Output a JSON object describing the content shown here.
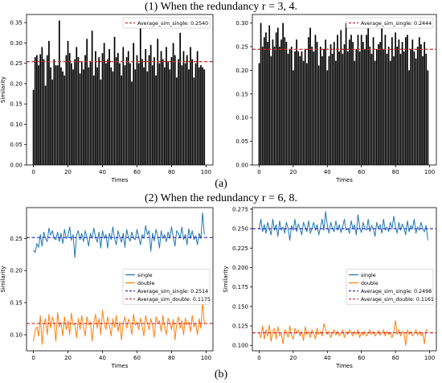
{
  "captions": {
    "top": "(1) When the redundancy r = 3, 4.",
    "panel_a": "(a)",
    "middle": "(2) When the redundancy r = 6, 8.",
    "panel_b": "(b)"
  },
  "colors": {
    "bar": "#000000",
    "single": "#1f77b4",
    "double": "#ff7f0e",
    "avg_single_bar": "#d62728",
    "avg_single_line": "#2222cc",
    "avg_double": "#d62728"
  },
  "chart_data": [
    {
      "type": "bar",
      "xlabel": "Times",
      "ylabel": "Similarity",
      "xlim": [
        -4,
        104
      ],
      "ylim": [
        0,
        0.37
      ],
      "xticks": [
        0,
        20,
        40,
        60,
        80,
        100
      ],
      "yticks": [
        0.0,
        0.05,
        0.1,
        0.15,
        0.2,
        0.25,
        0.3,
        0.35
      ],
      "legend_position": "top-right",
      "average": {
        "label": "Average_sim_single: 0.2540",
        "value": 0.254
      },
      "values": [
        0.185,
        0.265,
        0.27,
        0.245,
        0.272,
        0.29,
        0.26,
        0.195,
        0.27,
        0.305,
        0.24,
        0.21,
        0.26,
        0.245,
        0.245,
        0.355,
        0.24,
        0.23,
        0.22,
        0.27,
        0.305,
        0.275,
        0.25,
        0.235,
        0.26,
        0.29,
        0.265,
        0.225,
        0.255,
        0.235,
        0.27,
        0.31,
        0.24,
        0.255,
        0.33,
        0.22,
        0.28,
        0.24,
        0.265,
        0.21,
        0.275,
        0.3,
        0.25,
        0.26,
        0.285,
        0.24,
        0.23,
        0.315,
        0.265,
        0.275,
        0.25,
        0.22,
        0.29,
        0.245,
        0.265,
        0.28,
        0.25,
        0.205,
        0.3,
        0.235,
        0.27,
        0.25,
        0.345,
        0.26,
        0.24,
        0.285,
        0.23,
        0.27,
        0.295,
        0.245,
        0.265,
        0.22,
        0.31,
        0.25,
        0.28,
        0.26,
        0.24,
        0.29,
        0.255,
        0.235,
        0.265,
        0.3,
        0.27,
        0.215,
        0.26,
        0.325,
        0.245,
        0.28,
        0.25,
        0.27,
        0.235,
        0.29,
        0.26,
        0.215,
        0.25,
        0.28,
        0.24,
        0.245,
        0.24,
        0.235
      ]
    },
    {
      "type": "bar",
      "xlabel": "Times",
      "ylabel": "",
      "xlim": [
        -4,
        104
      ],
      "ylim": [
        0,
        0.318
      ],
      "xticks": [
        0,
        20,
        40,
        60,
        80,
        100
      ],
      "yticks": [
        0.0,
        0.05,
        0.1,
        0.15,
        0.2,
        0.25,
        0.3
      ],
      "legend_position": "top-right",
      "average": {
        "label": "Average_sim_single: 0.2444",
        "value": 0.2444
      },
      "values": [
        0.215,
        0.3,
        0.25,
        0.27,
        0.28,
        0.26,
        0.295,
        0.23,
        0.265,
        0.25,
        0.28,
        0.29,
        0.25,
        0.265,
        0.3,
        0.27,
        0.26,
        0.235,
        0.245,
        0.25,
        0.2,
        0.24,
        0.265,
        0.24,
        0.23,
        0.24,
        0.22,
        0.245,
        0.215,
        0.27,
        0.29,
        0.25,
        0.24,
        0.275,
        0.26,
        0.21,
        0.25,
        0.23,
        0.245,
        0.265,
        0.2,
        0.23,
        0.255,
        0.235,
        0.26,
        0.22,
        0.275,
        0.24,
        0.285,
        0.235,
        0.255,
        0.3,
        0.24,
        0.265,
        0.275,
        0.26,
        0.22,
        0.245,
        0.275,
        0.24,
        0.275,
        0.26,
        0.245,
        0.275,
        0.29,
        0.25,
        0.235,
        0.27,
        0.22,
        0.245,
        0.255,
        0.26,
        0.29,
        0.245,
        0.275,
        0.235,
        0.25,
        0.22,
        0.27,
        0.23,
        0.28,
        0.25,
        0.265,
        0.235,
        0.26,
        0.24,
        0.27,
        0.275,
        0.2,
        0.245,
        0.265,
        0.24,
        0.225,
        0.25,
        0.27,
        0.255,
        0.23,
        0.26,
        0.235,
        0.2
      ]
    },
    {
      "type": "line",
      "xlabel": "Times",
      "ylabel": "Similarity",
      "xlim": [
        -4,
        104
      ],
      "ylim": [
        0.075,
        0.298
      ],
      "xticks": [
        0,
        20,
        40,
        60,
        80,
        100
      ],
      "yticks": [
        0.1,
        0.15,
        0.2,
        0.25
      ],
      "legend_position": "center-right",
      "series": [
        {
          "name": "single",
          "values": [
            0.232,
            0.228,
            0.242,
            0.236,
            0.256,
            0.238,
            0.26,
            0.25,
            0.245,
            0.266,
            0.255,
            0.262,
            0.25,
            0.248,
            0.26,
            0.245,
            0.258,
            0.242,
            0.264,
            0.25,
            0.254,
            0.268,
            0.247,
            0.256,
            0.22,
            0.255,
            0.262,
            0.248,
            0.258,
            0.245,
            0.262,
            0.252,
            0.238,
            0.258,
            0.25,
            0.266,
            0.252,
            0.244,
            0.26,
            0.235,
            0.262,
            0.25,
            0.256,
            0.235,
            0.258,
            0.248,
            0.268,
            0.25,
            0.24,
            0.262,
            0.252,
            0.244,
            0.258,
            0.236,
            0.264,
            0.252,
            0.246,
            0.26,
            0.25,
            0.248,
            0.264,
            0.252,
            0.24,
            0.256,
            0.25,
            0.27,
            0.256,
            0.262,
            0.23,
            0.258,
            0.246,
            0.264,
            0.254,
            0.235,
            0.262,
            0.25,
            0.256,
            0.245,
            0.26,
            0.25,
            0.268,
            0.252,
            0.238,
            0.262,
            0.258,
            0.25,
            0.268,
            0.248,
            0.256,
            0.24,
            0.265,
            0.25,
            0.262,
            0.248,
            0.254,
            0.24,
            0.258,
            0.25,
            0.29,
            0.256
          ]
        },
        {
          "name": "double",
          "values": [
            0.09,
            0.108,
            0.112,
            0.098,
            0.13,
            0.085,
            0.115,
            0.125,
            0.1,
            0.132,
            0.11,
            0.128,
            0.118,
            0.09,
            0.135,
            0.112,
            0.12,
            0.098,
            0.128,
            0.108,
            0.122,
            0.1,
            0.134,
            0.115,
            0.118,
            0.095,
            0.125,
            0.108,
            0.13,
            0.112,
            0.098,
            0.128,
            0.115,
            0.12,
            0.09,
            0.118,
            0.132,
            0.11,
            0.125,
            0.1,
            0.138,
            0.118,
            0.108,
            0.128,
            0.115,
            0.098,
            0.125,
            0.112,
            0.13,
            0.105,
            0.12,
            0.092,
            0.118,
            0.128,
            0.11,
            0.124,
            0.118,
            0.1,
            0.132,
            0.115,
            0.12,
            0.108,
            0.126,
            0.112,
            0.098,
            0.13,
            0.118,
            0.108,
            0.125,
            0.114,
            0.096,
            0.128,
            0.118,
            0.122,
            0.105,
            0.13,
            0.112,
            0.1,
            0.126,
            0.118,
            0.108,
            0.124,
            0.092,
            0.118,
            0.128,
            0.11,
            0.122,
            0.1,
            0.126,
            0.115,
            0.12,
            0.105,
            0.13,
            0.112,
            0.118,
            0.1,
            0.125,
            0.11,
            0.152,
            0.116
          ]
        }
      ],
      "averages": [
        {
          "label": "Average_sim_single: 0.2514",
          "value": 0.2514
        },
        {
          "label": "Average_sim_double: 0.1175",
          "value": 0.1175
        }
      ]
    },
    {
      "type": "line",
      "xlabel": "Times",
      "ylabel": "Similarity",
      "xlim": [
        -4,
        104
      ],
      "ylim": [
        0.093,
        0.277
      ],
      "xticks": [
        0,
        20,
        40,
        60,
        80,
        100
      ],
      "yticks": [
        0.1,
        0.125,
        0.15,
        0.175,
        0.2,
        0.225,
        0.25,
        0.275
      ],
      "legend_position": "center-right",
      "series": [
        {
          "name": "single",
          "values": [
            0.25,
            0.262,
            0.246,
            0.255,
            0.244,
            0.258,
            0.25,
            0.242,
            0.262,
            0.248,
            0.255,
            0.24,
            0.26,
            0.248,
            0.252,
            0.244,
            0.258,
            0.25,
            0.235,
            0.254,
            0.248,
            0.262,
            0.246,
            0.256,
            0.25,
            0.242,
            0.258,
            0.252,
            0.246,
            0.26,
            0.244,
            0.25,
            0.258,
            0.248,
            0.255,
            0.242,
            0.252,
            0.262,
            0.248,
            0.272,
            0.254,
            0.244,
            0.258,
            0.25,
            0.246,
            0.26,
            0.248,
            0.255,
            0.245,
            0.252,
            0.262,
            0.248,
            0.25,
            0.244,
            0.26,
            0.25,
            0.255,
            0.242,
            0.268,
            0.252,
            0.245,
            0.258,
            0.25,
            0.248,
            0.262,
            0.246,
            0.254,
            0.25,
            0.24,
            0.258,
            0.25,
            0.255,
            0.244,
            0.262,
            0.248,
            0.252,
            0.246,
            0.258,
            0.25,
            0.266,
            0.252,
            0.244,
            0.258,
            0.248,
            0.256,
            0.25,
            0.242,
            0.26,
            0.246,
            0.254,
            0.25,
            0.262,
            0.244,
            0.252,
            0.248,
            0.258,
            0.25,
            0.246,
            0.254,
            0.235
          ]
        },
        {
          "name": "double",
          "values": [
            0.115,
            0.11,
            0.125,
            0.108,
            0.12,
            0.112,
            0.126,
            0.105,
            0.118,
            0.122,
            0.108,
            0.124,
            0.112,
            0.115,
            0.102,
            0.12,
            0.118,
            0.11,
            0.125,
            0.113,
            0.108,
            0.122,
            0.116,
            0.12,
            0.112,
            0.118,
            0.106,
            0.124,
            0.114,
            0.118,
            0.11,
            0.12,
            0.116,
            0.108,
            0.122,
            0.114,
            0.118,
            0.112,
            0.128,
            0.12,
            0.114,
            0.118,
            0.11,
            0.116,
            0.12,
            0.113,
            0.118,
            0.112,
            0.115,
            0.12,
            0.11,
            0.118,
            0.114,
            0.12,
            0.116,
            0.112,
            0.118,
            0.114,
            0.12,
            0.11,
            0.117,
            0.113,
            0.118,
            0.112,
            0.116,
            0.12,
            0.114,
            0.118,
            0.112,
            0.115,
            0.119,
            0.113,
            0.116,
            0.12,
            0.112,
            0.118,
            0.114,
            0.116,
            0.11,
            0.118,
            0.132,
            0.114,
            0.12,
            0.112,
            0.118,
            0.116,
            0.1,
            0.12,
            0.114,
            0.118,
            0.112,
            0.116,
            0.12,
            0.113,
            0.118,
            0.112,
            0.116,
            0.102,
            0.12,
            0.118
          ]
        }
      ],
      "averages": [
        {
          "label": "Average_sim_single: 0.2498",
          "value": 0.2498
        },
        {
          "label": "Average_sim_double: 0.1161",
          "value": 0.1161
        }
      ]
    }
  ]
}
